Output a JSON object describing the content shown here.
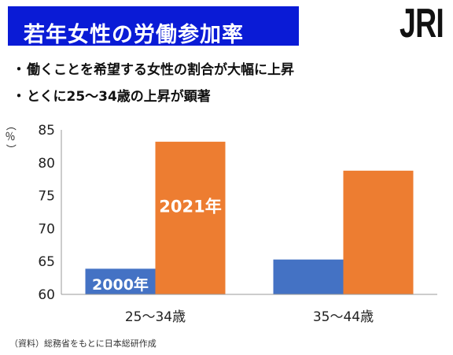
{
  "header": {
    "title": "若年女性の労働参加率",
    "logo": "JRI",
    "title_bg_color": "#0a1bd6"
  },
  "bullets": [
    {
      "dot": "・",
      "text": "働くことを希望する女性の割合が大幅に上昇"
    },
    {
      "dot": "・",
      "text": "とくに25～34歳の上昇が顕著"
    }
  ],
  "chart_data": {
    "type": "bar",
    "categories": [
      "25～34歳",
      "35～44歳"
    ],
    "series": [
      {
        "name": "2000年",
        "values": [
          63.9,
          65.3
        ],
        "color": "#4472c4"
      },
      {
        "name": "2021年",
        "values": [
          83.2,
          78.8
        ],
        "color": "#ed7d31"
      }
    ],
    "ylabel": "（％）",
    "ylim": [
      60,
      85
    ],
    "yticks": [
      60,
      65,
      70,
      75,
      80,
      85
    ],
    "grid": false,
    "legend": "series labels drawn inside first-category bars"
  },
  "source": "（資料）総務省をもとに日本総研作成"
}
